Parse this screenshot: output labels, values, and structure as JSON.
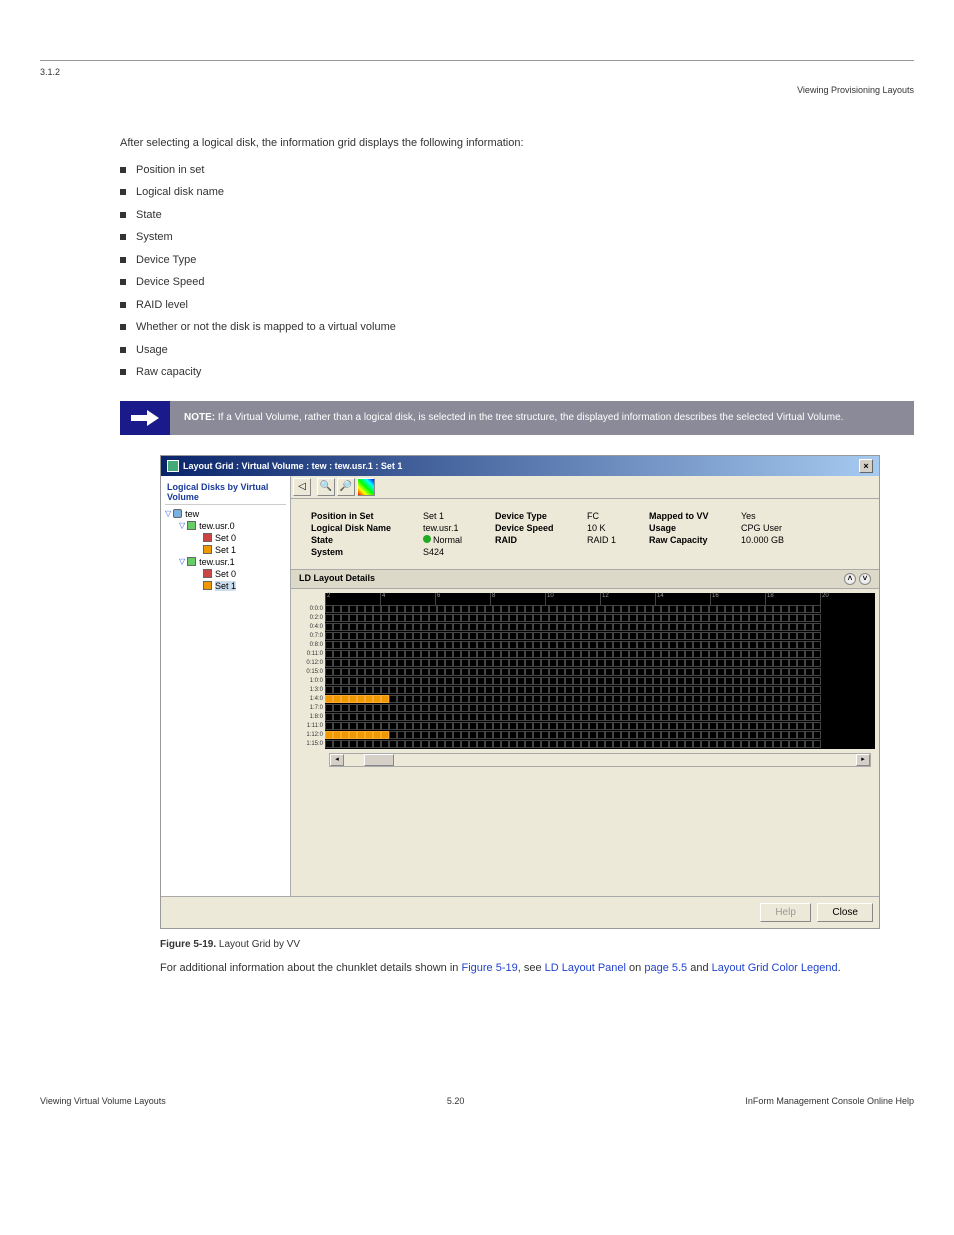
{
  "header": {
    "doc_id": "3.1.2",
    "chapter": "Viewing Provisioning Layouts",
    "section_num": "5.20"
  },
  "intro": "After selecting a logical disk, the information grid displays the following information:",
  "bullets": [
    "Position in set",
    "Logical disk name",
    "State",
    "System",
    "Device Type",
    "Device Speed",
    "RAID level",
    "Whether or not the disk is mapped to a virtual volume",
    "Usage",
    "Raw capacity"
  ],
  "note": {
    "label": "NOTE:",
    "text": "If a Virtual Volume, rather than a logical disk, is selected in the tree structure, the displayed information describes the selected Virtual Volume."
  },
  "window": {
    "title": "Layout Grid : Virtual Volume : tew : tew.usr.1 : Set 1",
    "tree_title": "Logical Disks by Virtual Volume",
    "tree": {
      "root": "tew",
      "vol0": "tew.usr.0",
      "vol0_set0": "Set 0",
      "vol0_set1": "Set 1",
      "vol1": "tew.usr.1",
      "vol1_set0": "Set 0",
      "vol1_set1": "Set 1"
    },
    "info": {
      "pos_lbl": "Position in Set",
      "pos_val": "Set 1",
      "ldn_lbl": "Logical Disk Name",
      "ldn_val": "tew.usr.1",
      "state_lbl": "State",
      "state_val": "Normal",
      "sys_lbl": "System",
      "sys_val": "S424",
      "dtype_lbl": "Device Type",
      "dtype_val": "FC",
      "dspeed_lbl": "Device Speed",
      "dspeed_val": "10 K",
      "raid_lbl": "RAID",
      "raid_val": "RAID 1",
      "map_lbl": "Mapped to VV",
      "map_val": "Yes",
      "usage_lbl": "Usage",
      "usage_val": "CPG User",
      "rcap_lbl": "Raw Capacity",
      "rcap_val": "10.000 GB"
    },
    "ld_section": "LD Layout Details",
    "col_headers": [
      "2",
      "4",
      "6",
      "8",
      "10",
      "12",
      "14",
      "16",
      "18",
      "20"
    ],
    "rows": [
      {
        "label": "0:0:0",
        "orange": []
      },
      {
        "label": "0:2:0",
        "orange": []
      },
      {
        "label": "0:4:0",
        "orange": []
      },
      {
        "label": "0:7:0",
        "orange": []
      },
      {
        "label": "0:8:0",
        "orange": []
      },
      {
        "label": "0:11:0",
        "orange": []
      },
      {
        "label": "0:12:0",
        "orange": []
      },
      {
        "label": "0:15:0",
        "orange": []
      },
      {
        "label": "1:0:0",
        "orange": []
      },
      {
        "label": "1:3:0",
        "orange": []
      },
      {
        "label": "1:4:0",
        "orange": [
          0,
          1,
          2,
          3,
          4,
          5,
          6,
          7
        ]
      },
      {
        "label": "1:7:0",
        "orange": []
      },
      {
        "label": "1:8:0",
        "orange": []
      },
      {
        "label": "1:11:0",
        "orange": []
      },
      {
        "label": "1:12:0",
        "orange": [
          0,
          1,
          2,
          3,
          4,
          5,
          6,
          7
        ]
      },
      {
        "label": "1:15:0",
        "orange": []
      }
    ],
    "cols_per_row": 62,
    "help_btn": "Help",
    "close_btn": "Close"
  },
  "figure": {
    "num": "Figure 5-19.",
    "title": "Layout Grid by VV"
  },
  "caption_text": {
    "p1a": "For additional information about the chunklet details shown in ",
    "p1b": "Figure 5-19",
    "p1c": ", see ",
    "p1d": "LD Layout Panel",
    "p1e": " on ",
    "p1f": "page 5.5",
    "p1g": " and ",
    "p1h": "Layout Grid Color Legend",
    "p1i": "."
  },
  "footer": {
    "left": "Viewing Virtual Volume Layouts",
    "right": "InForm Management Console Online Help"
  }
}
